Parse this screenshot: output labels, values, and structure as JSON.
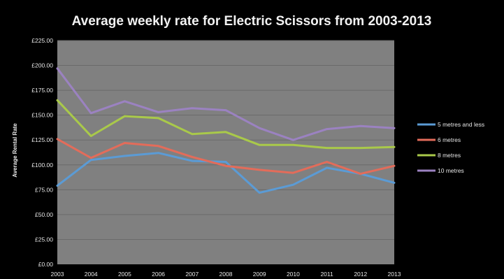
{
  "chart_data": {
    "type": "line",
    "title": "Average weekly rate for Electric Scissors from 2003-2013",
    "xlabel": "",
    "ylabel": "Average Rental Rate",
    "categories": [
      "2003",
      "2004",
      "2005",
      "2006",
      "2007",
      "2008",
      "2009",
      "2010",
      "2011",
      "2012",
      "2013"
    ],
    "y_ticks": [
      "£0.00",
      "£25.00",
      "£50.00",
      "£75.00",
      "£100.00",
      "£125.00",
      "£150.00",
      "£175.00",
      "£200.00",
      "£225.00"
    ],
    "ylim": [
      0,
      225
    ],
    "grid": true,
    "legend_position": "right",
    "plot_background": "#808080",
    "page_background": "#000000",
    "series": [
      {
        "name": "5 metres and less",
        "color": "#5b9bd5",
        "values": [
          79,
          105,
          109,
          112,
          104,
          103,
          72,
          80,
          97,
          91,
          82
        ]
      },
      {
        "name": "6 metres",
        "color": "#e36c5a",
        "values": [
          126,
          107,
          122,
          119,
          108,
          99,
          95,
          92,
          103,
          91,
          99
        ]
      },
      {
        "name": "8 metres",
        "color": "#a9c94a",
        "values": [
          165,
          129,
          149,
          147,
          131,
          133,
          120,
          120,
          117,
          117,
          118
        ]
      },
      {
        "name": "10 metres",
        "color": "#9b82c1",
        "values": [
          197,
          152,
          164,
          153,
          157,
          155,
          137,
          125,
          136,
          139,
          137
        ]
      }
    ]
  }
}
